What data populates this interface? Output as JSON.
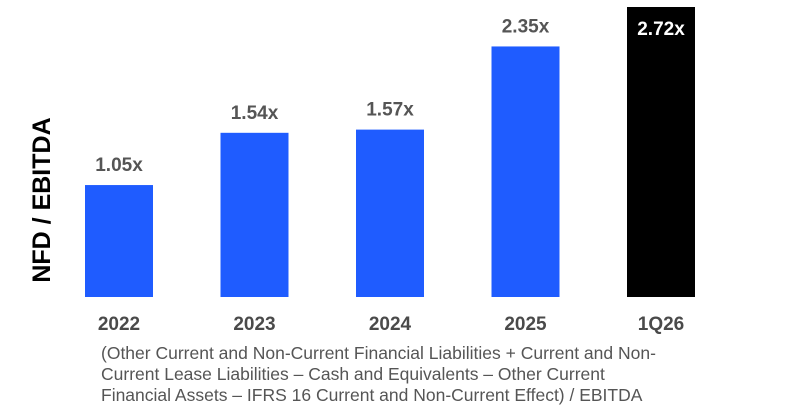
{
  "chart_data": {
    "type": "bar",
    "categories": [
      "2022",
      "2023",
      "2024",
      "2025",
      "1Q26"
    ],
    "values": [
      1.05,
      1.54,
      1.57,
      2.35,
      2.72
    ],
    "data_labels": [
      "1.05x",
      "1.54x",
      "1.57x",
      "2.35x",
      "2.72x"
    ],
    "ylabel": "NFD / EBITDA",
    "xlabel": "",
    "title": "",
    "ylim": [
      0,
      2.72
    ],
    "grid": false,
    "bar_colors": [
      "#1f5cff",
      "#1f5cff",
      "#1f5cff",
      "#1f5cff",
      "#000000"
    ],
    "label_colors": [
      "#555555",
      "#555555",
      "#555555",
      "#555555",
      "#ffffff"
    ],
    "highlight_index": 4
  },
  "footnote": {
    "lines": [
      "(Other Current and Non-Current Financial Liabilities + Current and Non-",
      "Current Lease Liabilities – Cash and Equivalents – Other Current",
      "Financial Assets – IFRS 16 Current and Non-Current Effect) / EBITDA"
    ]
  }
}
